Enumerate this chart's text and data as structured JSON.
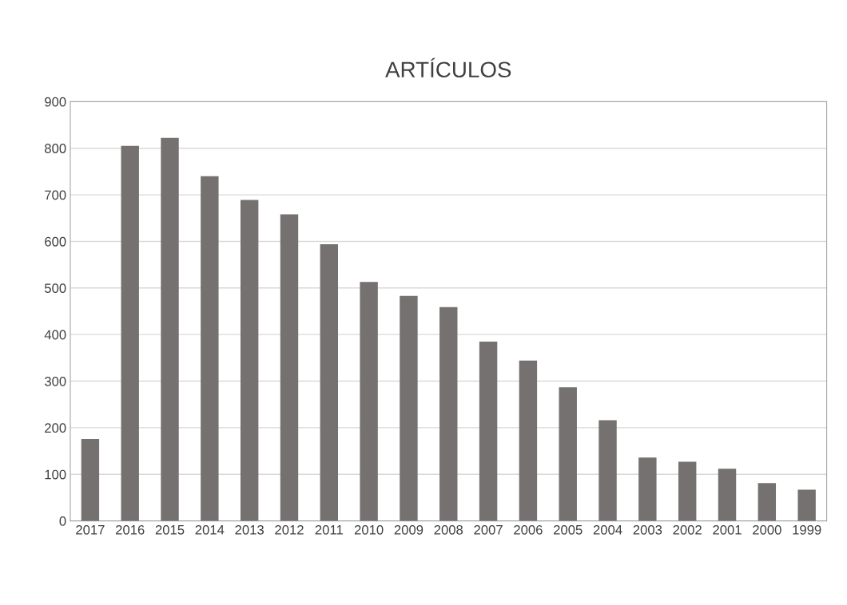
{
  "chart_data": {
    "type": "bar",
    "title": "ARTÍCULOS",
    "categories": [
      "2017",
      "2016",
      "2015",
      "2014",
      "2013",
      "2012",
      "2011",
      "2010",
      "2009",
      "2008",
      "2007",
      "2006",
      "2005",
      "2004",
      "2003",
      "2002",
      "2001",
      "2000",
      "1999"
    ],
    "values": [
      176,
      805,
      822,
      740,
      689,
      658,
      594,
      513,
      483,
      459,
      385,
      344,
      287,
      216,
      136,
      127,
      112,
      81,
      67
    ],
    "color": "#767171",
    "ylim": [
      0,
      900
    ],
    "yticks": [
      0,
      100,
      200,
      300,
      400,
      500,
      600,
      700,
      800,
      900
    ],
    "grid": "y",
    "legend": false
  }
}
